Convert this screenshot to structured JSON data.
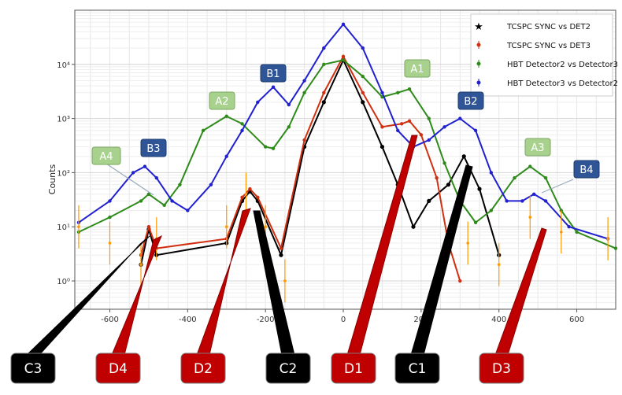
{
  "chart_data": {
    "type": "scatter",
    "title": "",
    "xlabel": "",
    "ylabel": "Counts",
    "yscale": "log",
    "xlim": [
      -690,
      700
    ],
    "ylim": [
      0.3,
      100000
    ],
    "xticks": [
      "-600",
      "-400",
      "-200",
      "0",
      "200",
      "400",
      "600"
    ],
    "xtick_values": [
      -600,
      -400,
      -200,
      0,
      200,
      400,
      600
    ],
    "yticks": [
      "10⁰",
      "10¹",
      "10²",
      "10³",
      "10⁴"
    ],
    "ytick_values": [
      1,
      10,
      100,
      1000,
      10000
    ],
    "grid": true,
    "legend_position": "top-right",
    "series": [
      {
        "name": "TCSPC SYNC vs DET2",
        "color": "#000000",
        "marker": "star",
        "points": [
          [
            -520,
            2
          ],
          [
            -500,
            9
          ],
          [
            -480,
            3
          ],
          [
            -300,
            5
          ],
          [
            -260,
            30
          ],
          [
            -240,
            45
          ],
          [
            -220,
            30
          ],
          [
            -160,
            3
          ],
          [
            -100,
            300
          ],
          [
            -50,
            2000
          ],
          [
            0,
            12000
          ],
          [
            50,
            2000
          ],
          [
            100,
            300
          ],
          [
            140,
            60
          ],
          [
            180,
            10
          ],
          [
            220,
            30
          ],
          [
            270,
            60
          ],
          [
            310,
            200
          ],
          [
            350,
            50
          ],
          [
            400,
            3
          ]
        ]
      },
      {
        "name": "TCSPC SYNC vs DET3",
        "color": "#d03010",
        "marker": "dot",
        "points": [
          [
            -520,
            3
          ],
          [
            -500,
            10
          ],
          [
            -480,
            4
          ],
          [
            -300,
            6
          ],
          [
            -260,
            35
          ],
          [
            -240,
            50
          ],
          [
            -220,
            35
          ],
          [
            -160,
            4
          ],
          [
            -100,
            400
          ],
          [
            -50,
            3000
          ],
          [
            0,
            14000
          ],
          [
            50,
            3000
          ],
          [
            100,
            700
          ],
          [
            150,
            800
          ],
          [
            170,
            900
          ],
          [
            200,
            500
          ],
          [
            240,
            80
          ],
          [
            270,
            5
          ],
          [
            300,
            1
          ]
        ]
      },
      {
        "name": "HBT Detector2 vs Detector3",
        "color": "#2e8b1a",
        "marker": "dot",
        "points": [
          [
            -680,
            8
          ],
          [
            -600,
            15
          ],
          [
            -520,
            30
          ],
          [
            -500,
            40
          ],
          [
            -460,
            25
          ],
          [
            -420,
            60
          ],
          [
            -360,
            600
          ],
          [
            -300,
            1100
          ],
          [
            -260,
            800
          ],
          [
            -200,
            300
          ],
          [
            -180,
            280
          ],
          [
            -140,
            700
          ],
          [
            -100,
            3000
          ],
          [
            -50,
            10000
          ],
          [
            0,
            12000
          ],
          [
            50,
            6000
          ],
          [
            100,
            2500
          ],
          [
            140,
            3000
          ],
          [
            170,
            3500
          ],
          [
            220,
            1000
          ],
          [
            260,
            150
          ],
          [
            300,
            30
          ],
          [
            340,
            12
          ],
          [
            380,
            20
          ],
          [
            440,
            80
          ],
          [
            480,
            130
          ],
          [
            520,
            80
          ],
          [
            560,
            20
          ],
          [
            600,
            8
          ],
          [
            700,
            4
          ]
        ]
      },
      {
        "name": "HBT Detector3 vs Detector2",
        "color": "#2020d0",
        "marker": "dot",
        "points": [
          [
            -680,
            12
          ],
          [
            -600,
            30
          ],
          [
            -540,
            100
          ],
          [
            -510,
            130
          ],
          [
            -480,
            80
          ],
          [
            -440,
            30
          ],
          [
            -400,
            20
          ],
          [
            -340,
            60
          ],
          [
            -300,
            200
          ],
          [
            -260,
            600
          ],
          [
            -220,
            2000
          ],
          [
            -180,
            3800
          ],
          [
            -140,
            1800
          ],
          [
            -100,
            5000
          ],
          [
            -50,
            20000
          ],
          [
            0,
            55000
          ],
          [
            50,
            20000
          ],
          [
            100,
            3000
          ],
          [
            140,
            600
          ],
          [
            180,
            300
          ],
          [
            220,
            400
          ],
          [
            260,
            700
          ],
          [
            300,
            1000
          ],
          [
            340,
            600
          ],
          [
            380,
            100
          ],
          [
            420,
            30
          ],
          [
            460,
            30
          ],
          [
            490,
            40
          ],
          [
            520,
            30
          ],
          [
            580,
            10
          ],
          [
            680,
            6
          ]
        ]
      },
      {
        "name": "",
        "color": "#ff9900",
        "marker": "errorbar",
        "points": [
          [
            -680,
            10
          ],
          [
            -600,
            5
          ],
          [
            -520,
            2
          ],
          [
            -480,
            6
          ],
          [
            -300,
            10
          ],
          [
            -250,
            40
          ],
          [
            -200,
            10
          ],
          [
            -150,
            1
          ],
          [
            320,
            5
          ],
          [
            400,
            2
          ],
          [
            480,
            15
          ],
          [
            560,
            8
          ],
          [
            680,
            6
          ]
        ]
      }
    ],
    "annotations": [
      {
        "label": "A1",
        "style": "green"
      },
      {
        "label": "A2",
        "style": "green"
      },
      {
        "label": "A3",
        "style": "green"
      },
      {
        "label": "A4",
        "style": "green"
      },
      {
        "label": "B1",
        "style": "blue"
      },
      {
        "label": "B2",
        "style": "blue"
      },
      {
        "label": "B3",
        "style": "blue"
      },
      {
        "label": "B4",
        "style": "blue"
      },
      {
        "label": "C1",
        "style": "black"
      },
      {
        "label": "C2",
        "style": "black"
      },
      {
        "label": "C3",
        "style": "black"
      },
      {
        "label": "D1",
        "style": "red"
      },
      {
        "label": "D2",
        "style": "red"
      },
      {
        "label": "D3",
        "style": "red"
      },
      {
        "label": "D4",
        "style": "red"
      }
    ]
  }
}
